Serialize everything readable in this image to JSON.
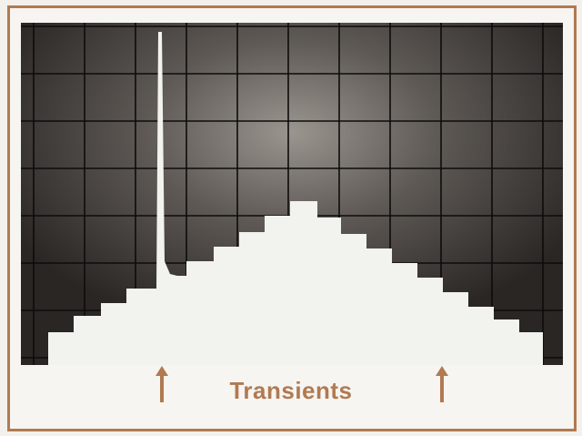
{
  "caption": "Transients",
  "colors": {
    "frame": "#b07a52",
    "caption": "#b07a52",
    "screen_dark": "#2a2624",
    "screen_light": "#9b9590",
    "trace": "#f2f2ef",
    "grid": "#0d0c0b"
  },
  "icons": {
    "left_marker": "arrow-up-icon",
    "right_marker": "arrow-up-icon"
  }
}
